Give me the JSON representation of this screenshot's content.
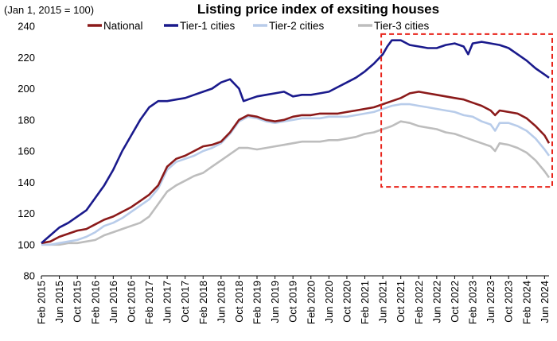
{
  "chart_data": {
    "type": "line",
    "title": "Listing price index of exsiting houses",
    "unit_label": "(Jan 1, 2015 = 100)",
    "ylim": [
      80,
      240
    ],
    "yticks": [
      80,
      100,
      120,
      140,
      160,
      180,
      200,
      220,
      240
    ],
    "x_tick_labels": [
      "Feb 2015",
      "Jun 2015",
      "Oct 2015",
      "Feb 2016",
      "Jun 2016",
      "Oct 2016",
      "Feb 2017",
      "Jun 2017",
      "Oct 2017",
      "Feb 2018",
      "Jun 2018",
      "Oct 2018",
      "Feb 2019",
      "Jun 2019",
      "Oct 2019",
      "Feb 2020",
      "Jun 2020",
      "Oct 2020",
      "Feb 2021",
      "Jun 2021",
      "Oct 2021",
      "Feb 2022",
      "Jun 2022",
      "Oct 2022",
      "Feb 2023",
      "Jun 2023",
      "Oct 2023",
      "Feb 2024",
      "Jun 2024"
    ],
    "x_range_months": [
      0,
      113
    ],
    "highlight_box": {
      "x_from": "Jun 2021",
      "x_to": "Jul 2024",
      "y_from": 137,
      "y_to": 235
    },
    "series": [
      {
        "name": "National",
        "color": "#8B1A1A",
        "points": [
          [
            0,
            101
          ],
          [
            2,
            102
          ],
          [
            4,
            105
          ],
          [
            6,
            107
          ],
          [
            8,
            109
          ],
          [
            10,
            110
          ],
          [
            12,
            113
          ],
          [
            14,
            116
          ],
          [
            16,
            118
          ],
          [
            18,
            121
          ],
          [
            20,
            124
          ],
          [
            22,
            128
          ],
          [
            24,
            132
          ],
          [
            26,
            138
          ],
          [
            28,
            150
          ],
          [
            30,
            155
          ],
          [
            32,
            157
          ],
          [
            34,
            160
          ],
          [
            36,
            163
          ],
          [
            38,
            164
          ],
          [
            40,
            166
          ],
          [
            42,
            172
          ],
          [
            44,
            180
          ],
          [
            46,
            183
          ],
          [
            48,
            182
          ],
          [
            50,
            180
          ],
          [
            52,
            179
          ],
          [
            54,
            180
          ],
          [
            56,
            182
          ],
          [
            58,
            183
          ],
          [
            60,
            183
          ],
          [
            62,
            184
          ],
          [
            64,
            184
          ],
          [
            66,
            184
          ],
          [
            68,
            185
          ],
          [
            70,
            186
          ],
          [
            72,
            187
          ],
          [
            74,
            188
          ],
          [
            76,
            190
          ],
          [
            78,
            192
          ],
          [
            80,
            194
          ],
          [
            82,
            197
          ],
          [
            84,
            198
          ],
          [
            86,
            197
          ],
          [
            88,
            196
          ],
          [
            90,
            195
          ],
          [
            92,
            194
          ],
          [
            94,
            193
          ],
          [
            96,
            191
          ],
          [
            98,
            189
          ],
          [
            100,
            186
          ],
          [
            101,
            183
          ],
          [
            102,
            186
          ],
          [
            104,
            185
          ],
          [
            106,
            184
          ],
          [
            108,
            181
          ],
          [
            110,
            176
          ],
          [
            112,
            170
          ],
          [
            113,
            165
          ]
        ]
      },
      {
        "name": "Tier-1 cities",
        "color": "#1A1A8C",
        "points": [
          [
            0,
            101
          ],
          [
            2,
            106
          ],
          [
            4,
            111
          ],
          [
            6,
            114
          ],
          [
            8,
            118
          ],
          [
            10,
            122
          ],
          [
            12,
            130
          ],
          [
            14,
            138
          ],
          [
            16,
            148
          ],
          [
            18,
            160
          ],
          [
            20,
            170
          ],
          [
            22,
            180
          ],
          [
            24,
            188
          ],
          [
            26,
            192
          ],
          [
            28,
            192
          ],
          [
            30,
            193
          ],
          [
            32,
            194
          ],
          [
            34,
            196
          ],
          [
            36,
            198
          ],
          [
            38,
            200
          ],
          [
            40,
            204
          ],
          [
            42,
            206
          ],
          [
            44,
            200
          ],
          [
            45,
            192
          ],
          [
            46,
            193
          ],
          [
            48,
            195
          ],
          [
            50,
            196
          ],
          [
            52,
            197
          ],
          [
            54,
            198
          ],
          [
            56,
            195
          ],
          [
            58,
            196
          ],
          [
            60,
            196
          ],
          [
            62,
            197
          ],
          [
            64,
            198
          ],
          [
            66,
            201
          ],
          [
            68,
            204
          ],
          [
            70,
            207
          ],
          [
            72,
            211
          ],
          [
            74,
            216
          ],
          [
            76,
            222
          ],
          [
            77,
            227
          ],
          [
            78,
            231
          ],
          [
            80,
            231
          ],
          [
            82,
            228
          ],
          [
            84,
            227
          ],
          [
            86,
            226
          ],
          [
            88,
            226
          ],
          [
            90,
            228
          ],
          [
            92,
            229
          ],
          [
            94,
            227
          ],
          [
            95,
            222
          ],
          [
            96,
            229
          ],
          [
            98,
            230
          ],
          [
            100,
            229
          ],
          [
            102,
            228
          ],
          [
            104,
            226
          ],
          [
            106,
            222
          ],
          [
            108,
            218
          ],
          [
            110,
            213
          ],
          [
            112,
            209
          ],
          [
            113,
            207
          ]
        ]
      },
      {
        "name": "Tier-2 cities",
        "color": "#B8CCEA",
        "points": [
          [
            0,
            100
          ],
          [
            2,
            100
          ],
          [
            4,
            101
          ],
          [
            6,
            102
          ],
          [
            8,
            103
          ],
          [
            10,
            105
          ],
          [
            12,
            108
          ],
          [
            14,
            112
          ],
          [
            16,
            114
          ],
          [
            18,
            117
          ],
          [
            20,
            121
          ],
          [
            22,
            125
          ],
          [
            24,
            129
          ],
          [
            26,
            136
          ],
          [
            28,
            148
          ],
          [
            30,
            153
          ],
          [
            32,
            155
          ],
          [
            34,
            157
          ],
          [
            36,
            160
          ],
          [
            38,
            162
          ],
          [
            40,
            165
          ],
          [
            42,
            171
          ],
          [
            44,
            179
          ],
          [
            46,
            182
          ],
          [
            48,
            181
          ],
          [
            50,
            179
          ],
          [
            52,
            178
          ],
          [
            54,
            179
          ],
          [
            56,
            180
          ],
          [
            58,
            181
          ],
          [
            60,
            181
          ],
          [
            62,
            181
          ],
          [
            64,
            182
          ],
          [
            66,
            182
          ],
          [
            68,
            182
          ],
          [
            70,
            183
          ],
          [
            72,
            184
          ],
          [
            74,
            185
          ],
          [
            76,
            187
          ],
          [
            78,
            189
          ],
          [
            80,
            190
          ],
          [
            82,
            190
          ],
          [
            84,
            189
          ],
          [
            86,
            188
          ],
          [
            88,
            187
          ],
          [
            90,
            186
          ],
          [
            92,
            185
          ],
          [
            94,
            183
          ],
          [
            96,
            182
          ],
          [
            98,
            179
          ],
          [
            100,
            177
          ],
          [
            101,
            173
          ],
          [
            102,
            178
          ],
          [
            104,
            178
          ],
          [
            106,
            176
          ],
          [
            108,
            173
          ],
          [
            110,
            168
          ],
          [
            112,
            161
          ],
          [
            113,
            157
          ]
        ]
      },
      {
        "name": "Tier-3 cities",
        "color": "#BDBDBD",
        "points": [
          [
            0,
            100
          ],
          [
            2,
            100
          ],
          [
            4,
            100
          ],
          [
            6,
            101
          ],
          [
            8,
            101
          ],
          [
            10,
            102
          ],
          [
            12,
            103
          ],
          [
            14,
            106
          ],
          [
            16,
            108
          ],
          [
            18,
            110
          ],
          [
            20,
            112
          ],
          [
            22,
            114
          ],
          [
            24,
            118
          ],
          [
            26,
            126
          ],
          [
            28,
            134
          ],
          [
            30,
            138
          ],
          [
            32,
            141
          ],
          [
            34,
            144
          ],
          [
            36,
            146
          ],
          [
            38,
            150
          ],
          [
            40,
            154
          ],
          [
            42,
            158
          ],
          [
            44,
            162
          ],
          [
            46,
            162
          ],
          [
            48,
            161
          ],
          [
            50,
            162
          ],
          [
            52,
            163
          ],
          [
            54,
            164
          ],
          [
            56,
            165
          ],
          [
            58,
            166
          ],
          [
            60,
            166
          ],
          [
            62,
            166
          ],
          [
            64,
            167
          ],
          [
            66,
            167
          ],
          [
            68,
            168
          ],
          [
            70,
            169
          ],
          [
            72,
            171
          ],
          [
            74,
            172
          ],
          [
            76,
            174
          ],
          [
            78,
            176
          ],
          [
            80,
            179
          ],
          [
            82,
            178
          ],
          [
            84,
            176
          ],
          [
            86,
            175
          ],
          [
            88,
            174
          ],
          [
            90,
            172
          ],
          [
            92,
            171
          ],
          [
            94,
            169
          ],
          [
            96,
            167
          ],
          [
            98,
            165
          ],
          [
            100,
            163
          ],
          [
            101,
            160
          ],
          [
            102,
            165
          ],
          [
            104,
            164
          ],
          [
            106,
            162
          ],
          [
            108,
            159
          ],
          [
            110,
            154
          ],
          [
            112,
            147
          ],
          [
            113,
            143
          ]
        ]
      }
    ]
  }
}
